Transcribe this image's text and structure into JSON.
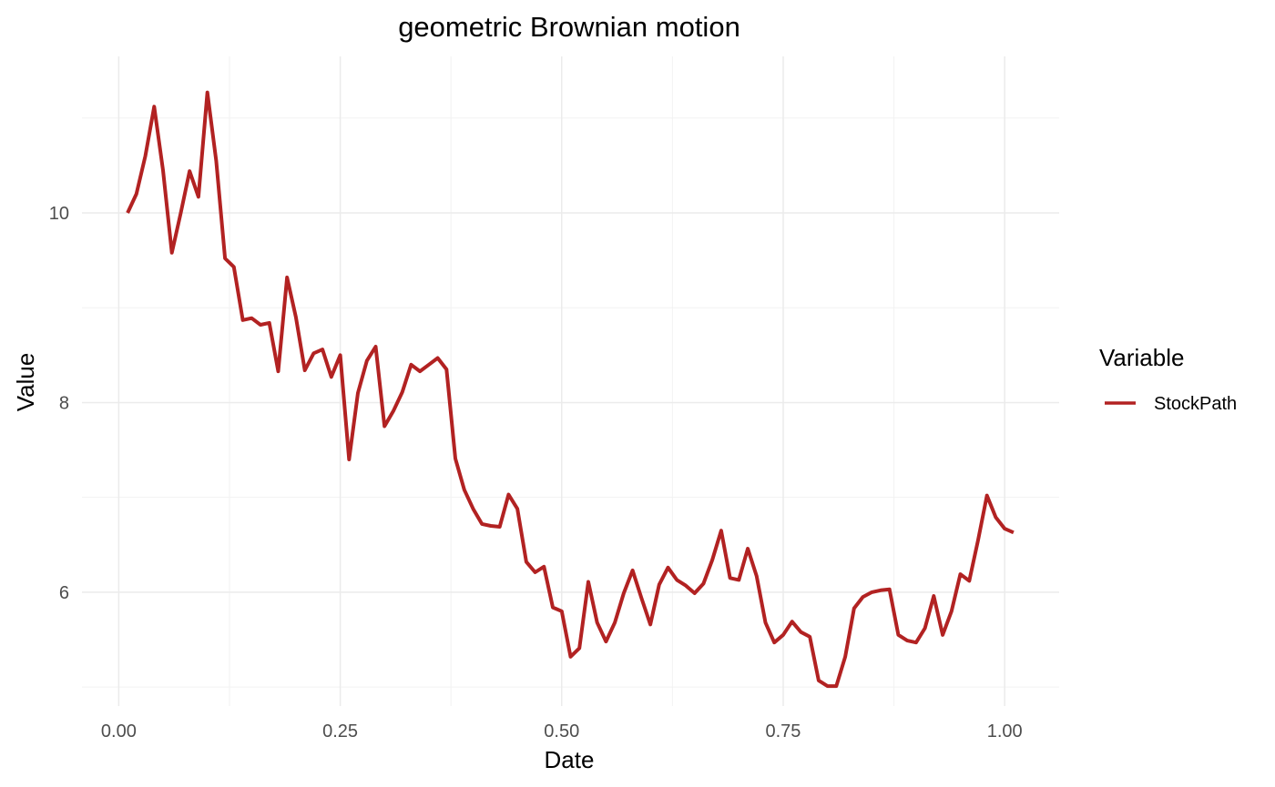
{
  "chart_data": {
    "type": "line",
    "title": "geometric Brownian motion",
    "xlabel": "Date",
    "ylabel": "Value",
    "xlim": [
      -0.0415,
      1.0615
    ],
    "ylim": [
      4.8,
      11.65
    ],
    "x_ticks": [
      0.0,
      0.25,
      0.5,
      0.75,
      1.0
    ],
    "x_tick_labels": [
      "0.00",
      "0.25",
      "0.50",
      "0.75",
      "1.00"
    ],
    "x_minor_ticks": [
      0.125,
      0.375,
      0.625,
      0.875
    ],
    "y_ticks": [
      6,
      8,
      10
    ],
    "y_tick_labels": [
      "6",
      "8",
      "10"
    ],
    "y_minor_ticks": [
      5,
      7,
      9,
      11
    ],
    "grid": true,
    "legend": {
      "title": "Variable",
      "position": "right"
    },
    "series": [
      {
        "name": "StockPath",
        "color": "#b22222",
        "x": [
          0.01,
          0.02,
          0.03,
          0.04,
          0.05,
          0.06,
          0.07,
          0.08,
          0.09,
          0.1,
          0.11,
          0.12,
          0.13,
          0.14,
          0.15,
          0.16,
          0.17,
          0.18,
          0.19,
          0.2,
          0.21,
          0.22,
          0.23,
          0.24,
          0.25,
          0.26,
          0.27,
          0.28,
          0.29,
          0.3,
          0.31,
          0.32,
          0.33,
          0.34,
          0.35,
          0.36,
          0.37,
          0.38,
          0.39,
          0.4,
          0.41,
          0.42,
          0.43,
          0.44,
          0.45,
          0.46,
          0.47,
          0.48,
          0.49,
          0.5,
          0.51,
          0.52,
          0.53,
          0.54,
          0.55,
          0.56,
          0.57,
          0.58,
          0.59,
          0.6,
          0.61,
          0.62,
          0.63,
          0.64,
          0.65,
          0.66,
          0.67,
          0.68,
          0.69,
          0.7,
          0.71,
          0.72,
          0.73,
          0.74,
          0.75,
          0.76,
          0.77,
          0.78,
          0.79,
          0.8,
          0.81,
          0.82,
          0.83,
          0.84,
          0.85,
          0.86,
          0.87,
          0.88,
          0.89,
          0.9,
          0.91,
          0.92,
          0.93,
          0.94,
          0.95,
          0.96,
          0.97,
          0.98,
          0.99,
          1.0,
          1.01
        ],
        "y": [
          10.0,
          10.2,
          10.6,
          11.12,
          10.45,
          9.58,
          10.0,
          10.44,
          10.17,
          11.27,
          10.55,
          9.52,
          9.43,
          8.87,
          8.89,
          8.82,
          8.84,
          8.33,
          9.32,
          8.9,
          8.34,
          8.52,
          8.56,
          8.27,
          8.5,
          7.4,
          8.1,
          8.44,
          8.59,
          7.75,
          7.91,
          8.11,
          8.4,
          8.33,
          8.4,
          8.47,
          8.35,
          7.41,
          7.08,
          6.88,
          6.72,
          6.7,
          6.69,
          7.03,
          6.88,
          6.32,
          6.21,
          6.27,
          5.84,
          5.8,
          5.32,
          5.41,
          6.11,
          5.68,
          5.48,
          5.68,
          5.99,
          6.23,
          5.94,
          5.66,
          6.08,
          6.26,
          6.13,
          6.07,
          5.99,
          6.09,
          6.34,
          6.65,
          6.15,
          6.13,
          6.46,
          6.17,
          5.68,
          5.47,
          5.55,
          5.69,
          5.58,
          5.53,
          5.07,
          5.01,
          5.01,
          5.32,
          5.83,
          5.95,
          6.0,
          6.02,
          6.03,
          5.55,
          5.49,
          5.47,
          5.62,
          5.96,
          5.55,
          5.8,
          6.19,
          6.12,
          6.55,
          7.02,
          6.79,
          6.67,
          6.63
        ]
      }
    ]
  }
}
